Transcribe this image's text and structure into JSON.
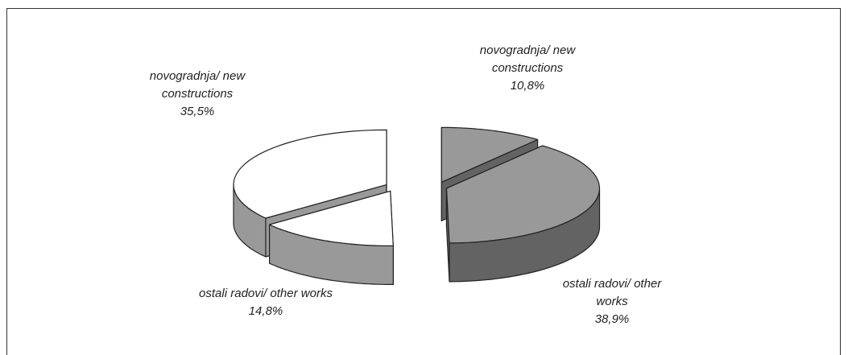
{
  "chart_data": {
    "type": "pie3d",
    "categories": [
      "novogradnja/ new constructions",
      "ostali radovi/ other works",
      "ostali radovi/ other works",
      "novogradnja/ new constructions"
    ],
    "values": [
      10.8,
      38.9,
      14.8,
      35.5
    ],
    "value_labels": [
      "10,8%",
      "38,9%",
      "14,8%",
      "35,5%"
    ],
    "colors": [
      "#999999",
      "#999999",
      "#ffffff",
      "#ffffff"
    ]
  }
}
